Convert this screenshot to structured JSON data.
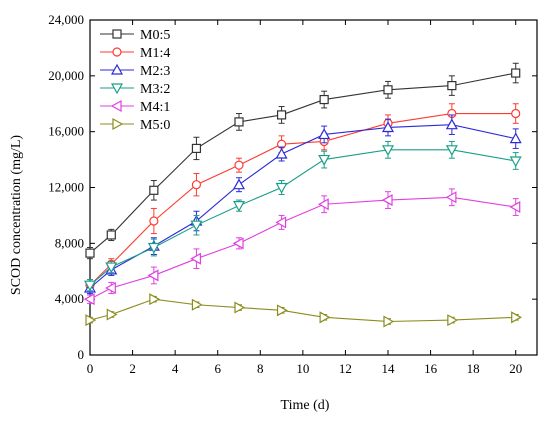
{
  "chart_data": {
    "type": "line",
    "xlabel": "Time (d)",
    "ylabel": "SCOD concentration (mg/L)",
    "xlim": [
      0,
      21
    ],
    "ylim": [
      0,
      24000
    ],
    "x_ticks": [
      0,
      2,
      4,
      6,
      8,
      10,
      12,
      14,
      16,
      18,
      20
    ],
    "x_tick_labels": [
      "0",
      "2",
      "4",
      "6",
      "8",
      "10",
      "12",
      "14",
      "16",
      "18",
      "20"
    ],
    "y_ticks": [
      0,
      4000,
      8000,
      12000,
      16000,
      20000,
      24000
    ],
    "y_tick_labels": [
      "0",
      "4,000",
      "8,000",
      "12,000",
      "16,000",
      "20,000",
      "24,000"
    ],
    "grid": false,
    "legend_position": "top-left",
    "x": [
      0,
      1,
      3,
      5,
      7,
      9,
      11,
      14,
      17,
      20
    ],
    "series": [
      {
        "name": "M0:5",
        "color": "#333333",
        "marker": "square",
        "values": [
          7300,
          8600,
          11800,
          14800,
          16700,
          17200,
          18300,
          19000,
          19300,
          20200
        ],
        "errors": [
          400,
          400,
          700,
          800,
          600,
          600,
          600,
          600,
          700,
          700
        ]
      },
      {
        "name": "M1:4",
        "color": "#ff3b30",
        "marker": "circle",
        "values": [
          5000,
          6500,
          9600,
          12200,
          13600,
          15100,
          15300,
          16600,
          17300,
          17300
        ],
        "errors": [
          400,
          400,
          900,
          800,
          500,
          600,
          600,
          600,
          700,
          700
        ]
      },
      {
        "name": "M2:3",
        "color": "#2b2bd9",
        "marker": "triangle-up",
        "values": [
          4800,
          6100,
          7800,
          9600,
          12200,
          14400,
          15800,
          16300,
          16500,
          15500
        ],
        "errors": [
          400,
          400,
          600,
          700,
          500,
          500,
          600,
          600,
          700,
          700
        ]
      },
      {
        "name": "M3:2",
        "color": "#1a9e8a",
        "marker": "triangle-down",
        "values": [
          5000,
          6300,
          7700,
          9300,
          10700,
          12000,
          14000,
          14700,
          14700,
          13900
        ],
        "errors": [
          400,
          400,
          600,
          700,
          400,
          500,
          600,
          600,
          600,
          600
        ]
      },
      {
        "name": "M4:1",
        "color": "#e040e0",
        "marker": "triangle-left",
        "values": [
          4000,
          4800,
          5700,
          6900,
          8000,
          9500,
          10800,
          11100,
          11300,
          10600
        ],
        "errors": [
          300,
          400,
          600,
          700,
          400,
          500,
          600,
          600,
          600,
          600
        ]
      },
      {
        "name": "M5:0",
        "color": "#8c8c1e",
        "marker": "triangle-right",
        "values": [
          2500,
          2900,
          4000,
          3600,
          3400,
          3200,
          2700,
          2400,
          2500,
          2700
        ],
        "errors": [
          200,
          200,
          200,
          200,
          200,
          200,
          200,
          200,
          200,
          200
        ]
      }
    ]
  }
}
